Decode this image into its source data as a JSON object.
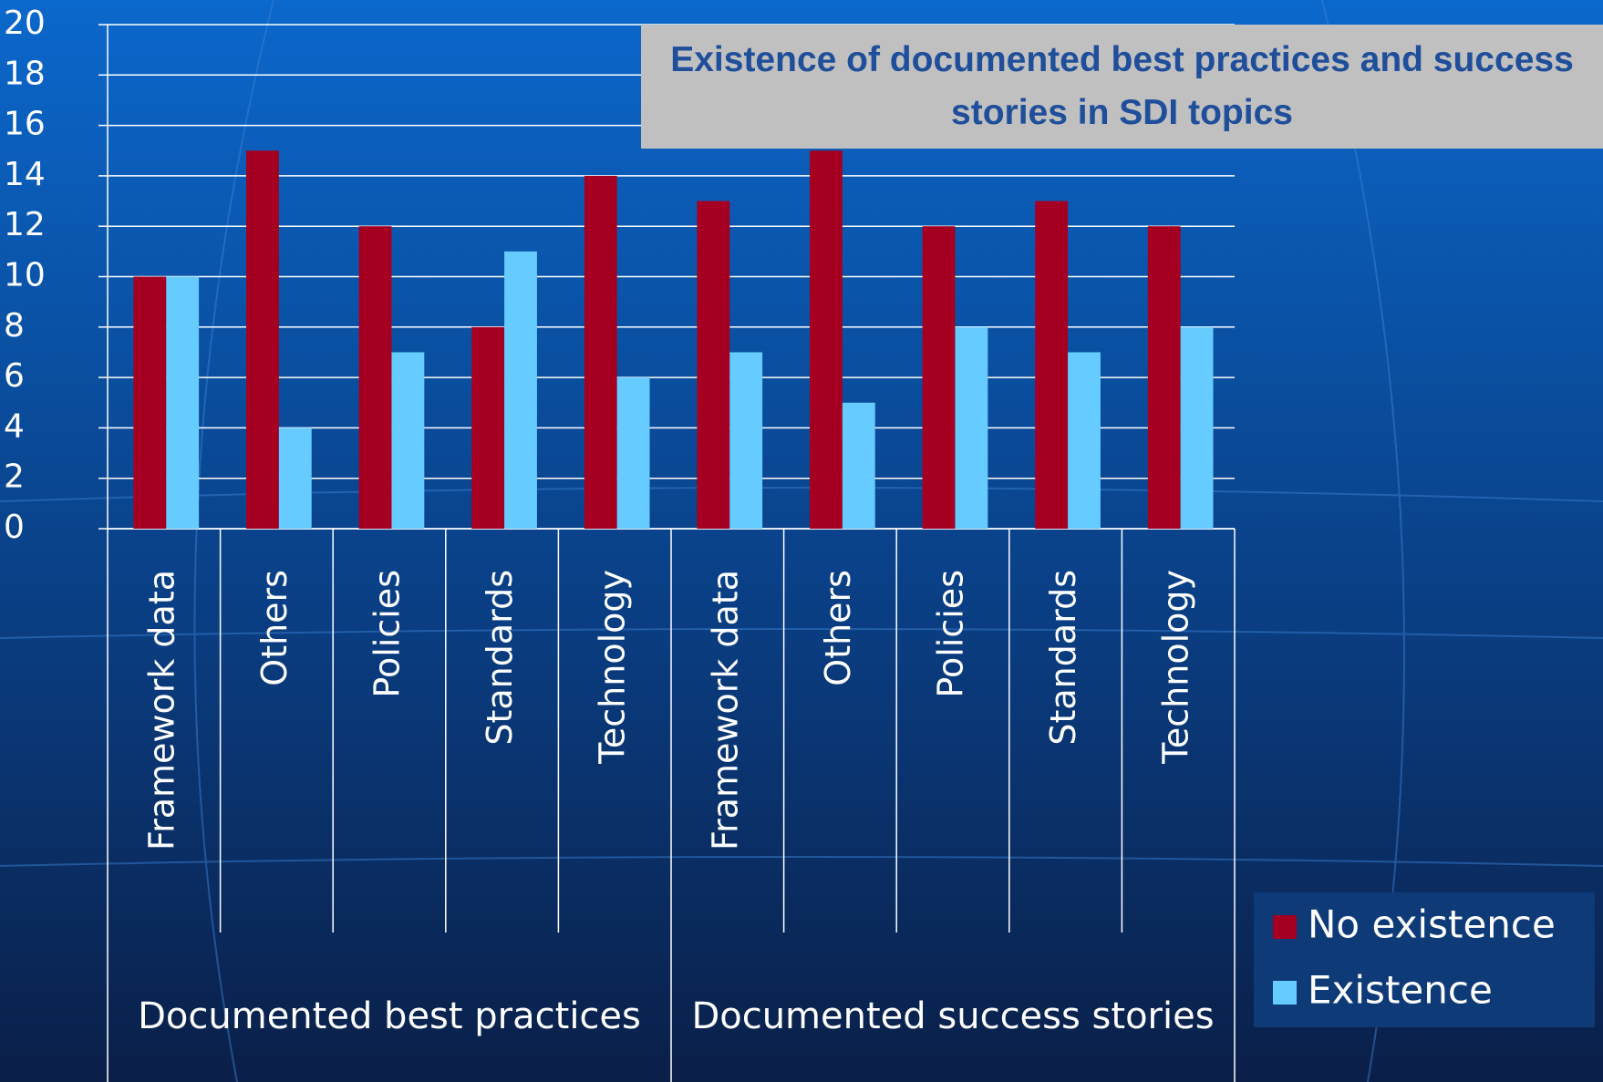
{
  "chart_data": {
    "type": "bar",
    "title": "Existence of documented best practices and success stories in SDI topics",
    "category_groups": [
      {
        "name": "Documented best practices",
        "categories": [
          "Framework data",
          "Others",
          "Policies",
          "Standards",
          "Technology"
        ]
      },
      {
        "name": "Documented success stories",
        "categories": [
          "Framework data",
          "Others",
          "Policies",
          "Standards",
          "Technology"
        ]
      }
    ],
    "series": [
      {
        "name": "No existence",
        "color": "#a50021",
        "values": [
          10,
          15,
          12,
          8,
          14,
          13,
          15,
          12,
          13,
          12
        ]
      },
      {
        "name": "Existence",
        "color": "#66ccff",
        "values": [
          10,
          4,
          7,
          11,
          6,
          7,
          5,
          8,
          7,
          8
        ]
      }
    ],
    "ylim": [
      0,
      20
    ],
    "yticks": [
      0,
      2,
      4,
      6,
      8,
      10,
      12,
      14,
      16,
      18,
      20
    ],
    "grid": true,
    "legend": "right"
  }
}
